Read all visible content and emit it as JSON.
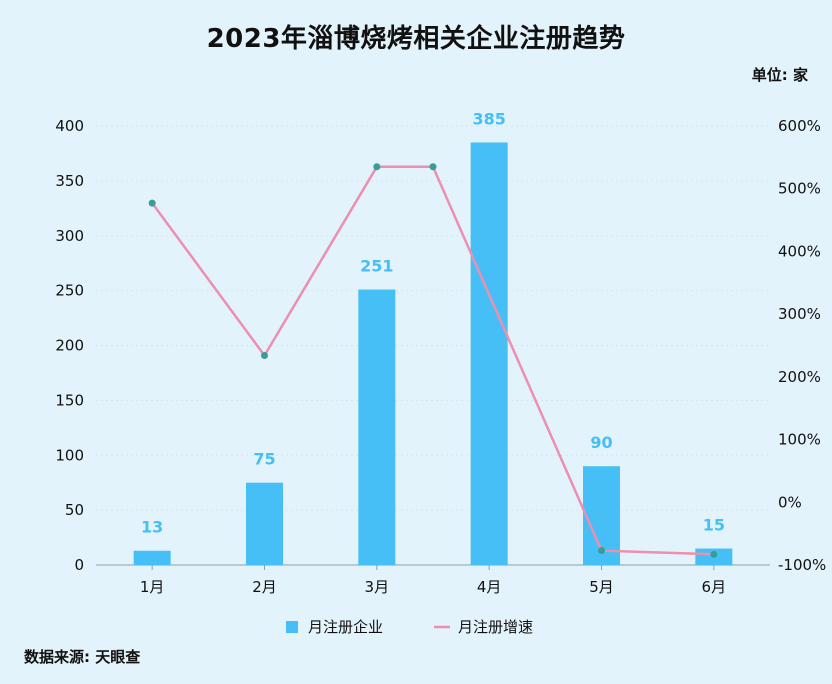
{
  "chart_data": {
    "type": "bar",
    "title": "2023年淄博烧烤相关企业注册趋势",
    "unit_label": "单位: 家",
    "source": "数据来源: 天眼查",
    "categories": [
      "1月",
      "2月",
      "3月",
      "4月",
      "5月",
      "6月"
    ],
    "series": [
      {
        "name": "月注册企业",
        "type": "bar",
        "axis": "left",
        "color": "#45bff5",
        "values": [
          13,
          75,
          251,
          385,
          90,
          15
        ]
      },
      {
        "name": "月注册增速",
        "type": "line",
        "axis": "right",
        "color": "#ec8fb0",
        "values": [
          477,
          234,
          535,
          null,
          -77,
          -83
        ]
      }
    ],
    "line_extra_point": {
      "x_between": [
        "3月",
        "4月"
      ],
      "value": 535
    },
    "ylim": [
      0,
      400
    ],
    "y_ticks": [
      0,
      50,
      100,
      150,
      200,
      250,
      300,
      350,
      400
    ],
    "y2lim": [
      -100,
      600
    ],
    "y2_ticks": [
      "-100%",
      "0%",
      "100%",
      "200%",
      "300%",
      "400%",
      "500%",
      "600%"
    ],
    "data_label_color": "#45bff5",
    "grid": true,
    "legend_position": "bottom"
  }
}
